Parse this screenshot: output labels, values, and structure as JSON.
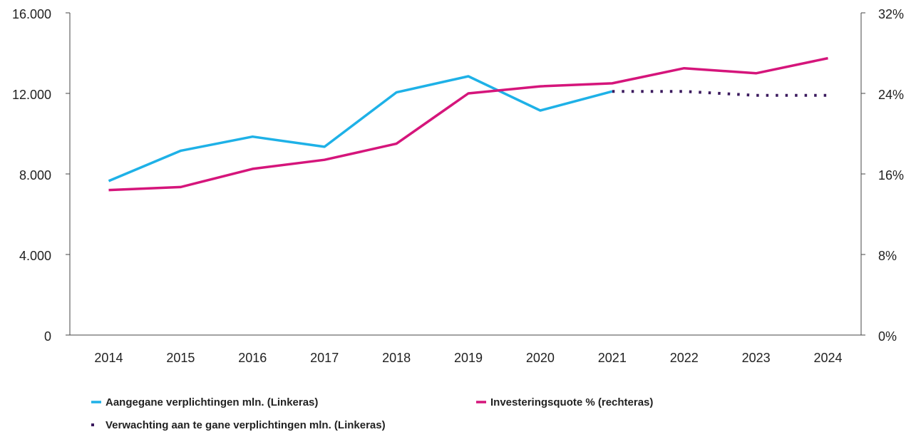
{
  "chart_data": {
    "type": "line",
    "categories": [
      "2014",
      "2015",
      "2016",
      "2017",
      "2018",
      "2019",
      "2020",
      "2021",
      "2022",
      "2023",
      "2024"
    ],
    "series": [
      {
        "name": "Aangegane verplichtingen mln. (Linkeras)",
        "color": "#1eb1e7",
        "axis": "y",
        "style": "solid",
        "values": [
          7650,
          9150,
          9850,
          9350,
          12050,
          12850,
          11150,
          12100,
          null,
          null,
          null
        ]
      },
      {
        "name": "Investeringsquote % (rechteras)",
        "color": "#d5157b",
        "axis": "y2",
        "style": "solid",
        "values": [
          14.4,
          14.7,
          16.5,
          17.4,
          19.0,
          24.0,
          24.7,
          25.0,
          26.5,
          26.0,
          27.5
        ]
      },
      {
        "name": "Verwachting aan te gane verplichtingen mln. (Linkeras)",
        "color": "#3b1a5e",
        "axis": "y",
        "style": "dotted",
        "values": [
          null,
          null,
          null,
          null,
          null,
          null,
          null,
          12100,
          12100,
          11900,
          11900
        ]
      }
    ],
    "ylim": [
      0,
      16000
    ],
    "yticks": [
      0,
      {
        "value": 4000,
        "label": "4.000"
      },
      {
        "value": 8000,
        "label": "8.000"
      },
      {
        "value": 12000,
        "label": "12.000"
      },
      {
        "value": 16000,
        "label": "16.000"
      }
    ],
    "y2lim": [
      0,
      32
    ],
    "y2ticks": [
      {
        "value": 0,
        "label": "0%"
      },
      {
        "value": 8,
        "label": "8%"
      },
      {
        "value": 16,
        "label": "16%"
      },
      {
        "value": 24,
        "label": "24%"
      },
      {
        "value": 32,
        "label": "32%"
      }
    ],
    "grid": false
  }
}
